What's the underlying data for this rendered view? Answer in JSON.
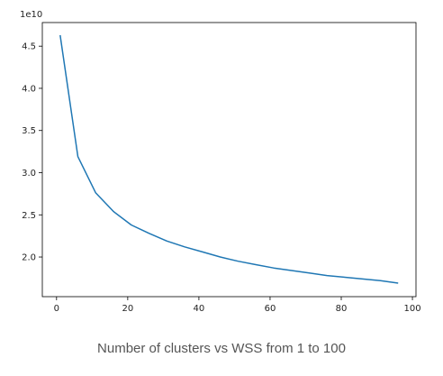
{
  "caption": "Number of clusters vs WSS from 1 to 100",
  "chart_data": {
    "type": "line",
    "title": "",
    "xlabel": "",
    "ylabel": "",
    "y_offset_label": "1e10",
    "xlim": [
      -4,
      101
    ],
    "ylim": [
      1.53,
      4.78
    ],
    "x_ticks": [
      0,
      20,
      40,
      60,
      80,
      100
    ],
    "y_ticks": [
      2.0,
      2.5,
      3.0,
      3.5,
      4.0,
      4.5
    ],
    "x_tick_labels": [
      "0",
      "20",
      "40",
      "60",
      "80",
      "100"
    ],
    "y_tick_labels": [
      "2.0",
      "2.5",
      "3.0",
      "3.5",
      "4.0",
      "4.5"
    ],
    "grid": false,
    "line_color": "#1f77b4",
    "series": [
      {
        "x": [
          1,
          6,
          11,
          16,
          21,
          26,
          31,
          36,
          41,
          46,
          51,
          56,
          61,
          66,
          71,
          76,
          81,
          86,
          91,
          96
        ],
        "y": [
          4.63,
          3.19,
          2.76,
          2.54,
          2.38,
          2.28,
          2.19,
          2.12,
          2.06,
          2.0,
          1.95,
          1.91,
          1.87,
          1.84,
          1.81,
          1.78,
          1.76,
          1.74,
          1.72,
          1.69
        ]
      }
    ]
  }
}
